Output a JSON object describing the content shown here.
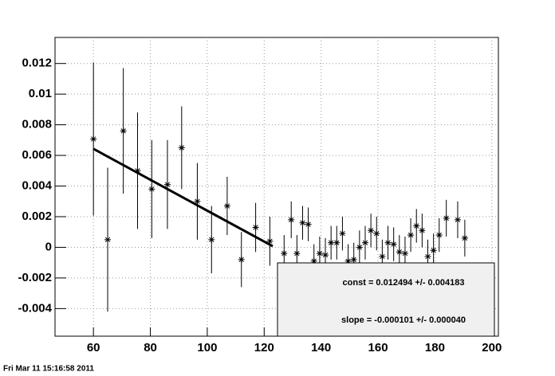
{
  "chart_data": {
    "type": "scatter",
    "x": [
      60,
      65,
      70.5,
      75.5,
      80.5,
      86,
      91,
      96.5,
      101.5,
      107,
      112,
      117,
      122,
      127,
      129.5,
      131.5,
      133.5,
      135.5,
      137.5,
      139.5,
      141.5,
      143.5,
      145.5,
      147.5,
      149.5,
      151.5,
      153.5,
      155.5,
      157.5,
      159.5,
      161.5,
      163.5,
      165.5,
      167.5,
      169.5,
      171.5,
      173.5,
      175.5,
      177.5,
      179.5,
      181.5,
      184,
      188,
      190.5
    ],
    "values": [
      0.00707,
      0.0005,
      0.0076,
      0.005,
      0.0038,
      0.0041,
      0.0065,
      0.003,
      0.0005,
      0.0027,
      -0.0008,
      0.0013,
      0.0004,
      -0.0004,
      0.0018,
      -0.0004,
      0.0016,
      0.0015,
      -0.0009,
      -0.0004,
      -0.0005,
      0.0003,
      0.0003,
      0.0009,
      -0.0009,
      -0.0008,
      0,
      0.0003,
      0.0011,
      0.0009,
      -0.0006,
      0.0003,
      0.0002,
      -0.0003,
      -0.0004,
      0.0008,
      0.0014,
      0.0011,
      -0.0006,
      -0.0002,
      0.0008,
      0.0019,
      0.0018,
      0.0006
    ],
    "errors": [
      0.005,
      0.0047,
      0.0041,
      0.0038,
      0.0032,
      0.0029,
      0.0027,
      0.0025,
      0.0022,
      0.0019,
      0.0018,
      0.0016,
      0.0016,
      0.0012,
      0.0012,
      0.0012,
      0.0011,
      0.0011,
      0.0011,
      0.0011,
      0.0011,
      0.0011,
      0.0011,
      0.0011,
      0.0011,
      0.0011,
      0.0011,
      0.0011,
      0.0011,
      0.0011,
      0.0011,
      0.0011,
      0.0011,
      0.0011,
      0.0011,
      0.0011,
      0.0011,
      0.0011,
      0.0011,
      0.0011,
      0.0011,
      0.0012,
      0.0012,
      0.0012
    ],
    "color": "#000000",
    "fit": {
      "x": [
        60,
        123
      ],
      "values": [
        0.00643,
        7e-05
      ],
      "color": "#000000"
    },
    "xlim": [
      46.5,
      202.3
    ],
    "xticks": [
      60,
      80,
      100,
      120,
      140,
      160,
      180,
      200
    ],
    "ylim": [
      -0.0058,
      0.0137
    ],
    "yticks": [
      -0.004,
      -0.002,
      0,
      0.002,
      0.004,
      0.006,
      0.008,
      0.01,
      0.012
    ],
    "grid": true,
    "stats": [
      "const = 0.012494 +/- 0.004183",
      "slope = -0.000101 +/- 0.000040"
    ],
    "timestamp": "Fri Mar 11 15:16:58 2011"
  }
}
